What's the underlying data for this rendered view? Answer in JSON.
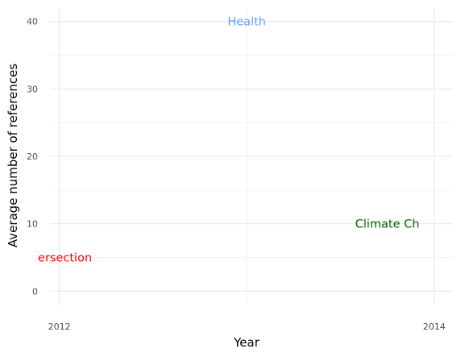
{
  "chart_data": {
    "type": "scatter",
    "title": "",
    "xlabel": "Year",
    "ylabel": "Average number of references",
    "xlim": [
      2011.95,
      2014.1
    ],
    "ylim": [
      -2,
      42
    ],
    "x_ticks": [
      2012,
      2014
    ],
    "x_tick_labels": [
      "2012",
      "2014"
    ],
    "y_ticks": [
      0,
      10,
      20,
      30,
      40
    ],
    "y_tick_labels": [
      "0",
      "10",
      "20",
      "30",
      "40"
    ],
    "grid": true,
    "legend": "none",
    "points": [
      {
        "label": "Health",
        "x": 2013.0,
        "y": 40,
        "color": "#619CFF"
      },
      {
        "label": "Climate Ch",
        "x": 2013.75,
        "y": 10,
        "color": "#006400"
      },
      {
        "label": "ersection",
        "x": 2012.03,
        "y": 5,
        "color": "#FF0000"
      }
    ]
  }
}
